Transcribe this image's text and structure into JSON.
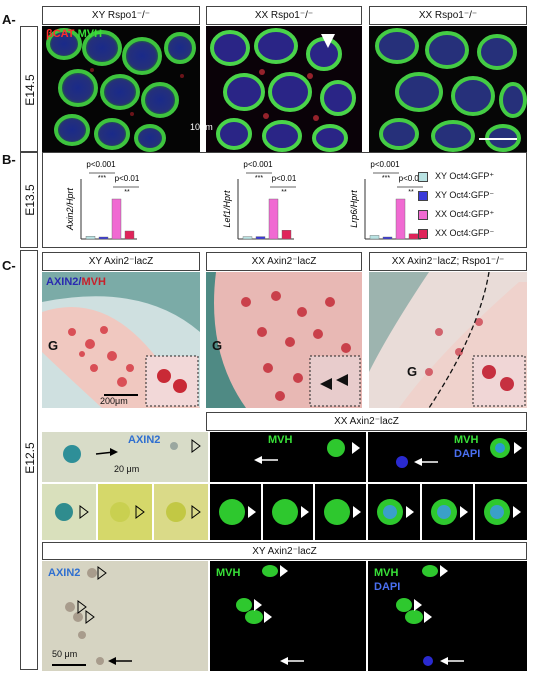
{
  "panels": {
    "A": {
      "label": "A-",
      "stage": "E14.5",
      "headers": [
        "XY Rspo1⁻/⁻",
        "XX Rspo1⁻/⁻",
        "XX Rspo1⁻/⁻"
      ],
      "stain_bcat": "βCAT",
      "stain_mvh": "MVH",
      "scalebar": "10μm"
    },
    "B": {
      "label": "B-",
      "stage": "E13.5",
      "legend": [
        {
          "label": "XY Oct4:GFP⁺",
          "color": "#b9e3e3"
        },
        {
          "label": "XY Oct4:GFP⁻",
          "color": "#3a3ad8"
        },
        {
          "label": "XX Oct4:GFP⁺",
          "color": "#f06ad2"
        },
        {
          "label": "XX Oct4:GFP⁻",
          "color": "#e0245a"
        }
      ]
    },
    "C": {
      "label": "C-",
      "stage": "E12.5",
      "headers": [
        "XY Axin2⁻lacZ",
        "XX Axin2⁻lacZ",
        "XX Axin2⁻lacZ; Rspo1⁻/⁻"
      ],
      "stain_axin2": "AXIN2",
      "stain_mvh": "MVH",
      "g_label": "G",
      "scalebar_tissue": "200μm",
      "xx_row_header": "XX Axin2⁻lacZ",
      "xy_row_header": "XY Axin2⁻lacZ",
      "ch_axin2": "AXIN2",
      "ch_mvh": "MVH",
      "ch_dapi": "DAPI",
      "scalebar_20": "20 μm",
      "scalebar_50": "50 μm"
    }
  },
  "chart_data": [
    {
      "type": "bar",
      "ylabel": "Axin2/Hprt",
      "categories": [
        "XY Oct4:GFP⁺",
        "XY Oct4:GFP⁻",
        "XX Oct4:GFP⁺",
        "XX Oct4:GFP⁻"
      ],
      "values": [
        0.07,
        0.05,
        1.0,
        0.2
      ],
      "annotations": [
        "p<0.001",
        "***",
        "p<0.01",
        "**"
      ]
    },
    {
      "type": "bar",
      "ylabel": "Lef1/Hprt",
      "categories": [
        "XY Oct4:GFP⁺",
        "XY Oct4:GFP⁻",
        "XX Oct4:GFP⁺",
        "XX Oct4:GFP⁻"
      ],
      "values": [
        0.06,
        0.06,
        1.0,
        0.22
      ],
      "annotations": [
        "p<0.001",
        "***",
        "p<0.01",
        "**"
      ]
    },
    {
      "type": "bar",
      "ylabel": "Lrp6/Hprt",
      "categories": [
        "XY Oct4:GFP⁺",
        "XY Oct4:GFP⁻",
        "XX Oct4:GFP⁺",
        "XX Oct4:GFP⁻"
      ],
      "values": [
        0.09,
        0.05,
        1.0,
        0.13
      ],
      "annotations": [
        "p<0.001",
        "***",
        "p<0.01",
        "**"
      ]
    }
  ]
}
